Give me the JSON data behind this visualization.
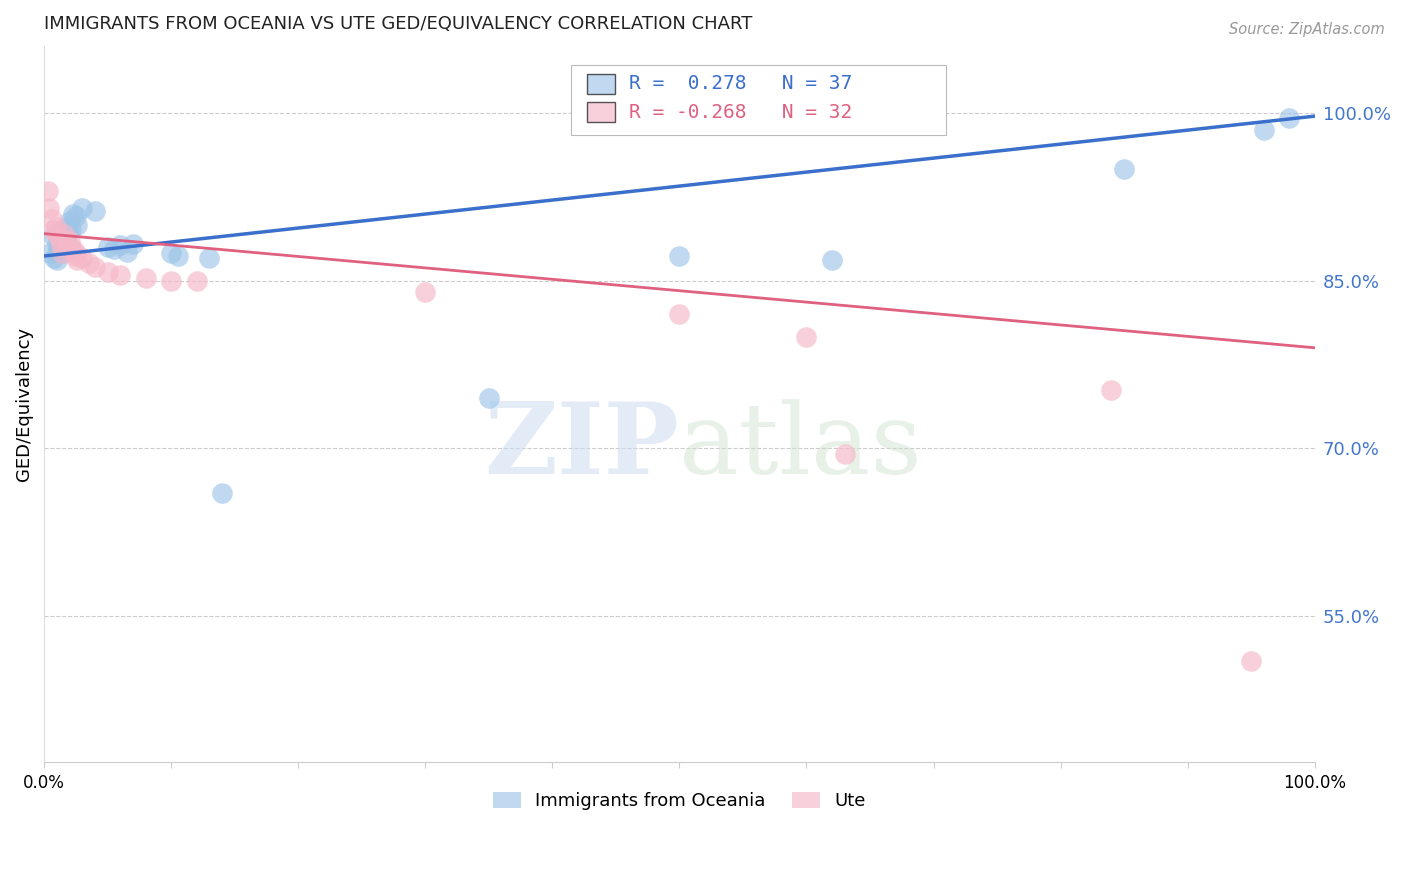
{
  "title": "IMMIGRANTS FROM OCEANIA VS UTE GED/EQUIVALENCY CORRELATION CHART",
  "source": "Source: ZipAtlas.com",
  "ylabel": "GED/Equivalency",
  "ytick_labels": [
    "55.0%",
    "70.0%",
    "85.0%",
    "100.0%"
  ],
  "ytick_values": [
    0.55,
    0.7,
    0.85,
    1.0
  ],
  "xlim": [
    0.0,
    1.0
  ],
  "ylim": [
    0.42,
    1.06
  ],
  "blue_color": "#9ec4e8",
  "pink_color": "#f5b8c8",
  "blue_line_color": "#3a6fcc",
  "pink_line_color": "#e06080",
  "blue_scatter": [
    [
      0.005,
      0.875
    ],
    [
      0.007,
      0.89
    ],
    [
      0.008,
      0.87
    ],
    [
      0.01,
      0.892
    ],
    [
      0.01,
      0.883
    ],
    [
      0.01,
      0.876
    ],
    [
      0.01,
      0.868
    ],
    [
      0.012,
      0.888
    ],
    [
      0.013,
      0.881
    ],
    [
      0.014,
      0.875
    ],
    [
      0.015,
      0.895
    ],
    [
      0.016,
      0.887
    ],
    [
      0.016,
      0.88
    ],
    [
      0.018,
      0.898
    ],
    [
      0.019,
      0.893
    ],
    [
      0.02,
      0.903
    ],
    [
      0.021,
      0.896
    ],
    [
      0.023,
      0.91
    ],
    [
      0.025,
      0.908
    ],
    [
      0.026,
      0.9
    ],
    [
      0.03,
      0.915
    ],
    [
      0.04,
      0.912
    ],
    [
      0.05,
      0.88
    ],
    [
      0.055,
      0.878
    ],
    [
      0.06,
      0.882
    ],
    [
      0.065,
      0.876
    ],
    [
      0.07,
      0.883
    ],
    [
      0.1,
      0.875
    ],
    [
      0.105,
      0.872
    ],
    [
      0.13,
      0.87
    ],
    [
      0.14,
      0.66
    ],
    [
      0.35,
      0.745
    ],
    [
      0.5,
      0.872
    ],
    [
      0.62,
      0.868
    ],
    [
      0.85,
      0.95
    ],
    [
      0.96,
      0.985
    ],
    [
      0.98,
      0.995
    ]
  ],
  "pink_scatter": [
    [
      0.003,
      0.93
    ],
    [
      0.004,
      0.915
    ],
    [
      0.006,
      0.905
    ],
    [
      0.007,
      0.895
    ],
    [
      0.009,
      0.898
    ],
    [
      0.01,
      0.892
    ],
    [
      0.012,
      0.888
    ],
    [
      0.013,
      0.882
    ],
    [
      0.014,
      0.875
    ],
    [
      0.016,
      0.892
    ],
    [
      0.017,
      0.885
    ],
    [
      0.018,
      0.879
    ],
    [
      0.02,
      0.885
    ],
    [
      0.021,
      0.878
    ],
    [
      0.023,
      0.878
    ],
    [
      0.024,
      0.872
    ],
    [
      0.025,
      0.875
    ],
    [
      0.026,
      0.868
    ],
    [
      0.03,
      0.87
    ],
    [
      0.035,
      0.866
    ],
    [
      0.04,
      0.862
    ],
    [
      0.05,
      0.858
    ],
    [
      0.06,
      0.855
    ],
    [
      0.08,
      0.852
    ],
    [
      0.1,
      0.85
    ],
    [
      0.12,
      0.85
    ],
    [
      0.3,
      0.84
    ],
    [
      0.5,
      0.82
    ],
    [
      0.6,
      0.8
    ],
    [
      0.63,
      0.695
    ],
    [
      0.84,
      0.752
    ],
    [
      0.95,
      0.51
    ]
  ],
  "blue_line_y0": 0.872,
  "blue_line_y1": 0.997,
  "pink_line_y0": 0.892,
  "pink_line_y1": 0.79
}
